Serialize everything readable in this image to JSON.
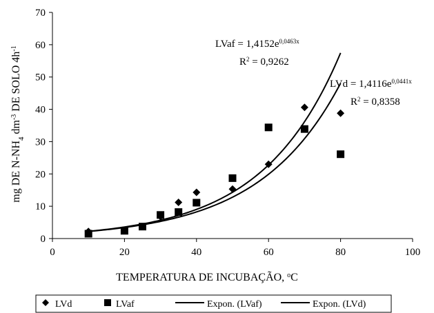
{
  "chart_data": {
    "type": "scatter",
    "xlabel": "TEMPERATURA DE INCUBAÇÃO, °C",
    "ylabel": "mg DE N-NH4 dm-3 DE SOLO 4h-1",
    "ylabel_parts": {
      "pre": "mg DE N-NH",
      "sub": "4",
      "mid": " dm",
      "sup1": "-3",
      "post": " DE SOLO 4h",
      "sup2": "-1"
    },
    "xlabel_parts": {
      "pre": "TEMPERATURA DE INCUBAÇÃO, ",
      "sup": "o",
      "post": "C"
    },
    "xlim": [
      0,
      100
    ],
    "ylim": [
      0,
      70
    ],
    "xticks": [
      0,
      20,
      40,
      60,
      80,
      100
    ],
    "yticks": [
      0,
      10,
      20,
      30,
      40,
      50,
      60,
      70
    ],
    "grid": false,
    "legend_position": "bottom",
    "series": [
      {
        "name": "LVd",
        "marker": "diamond",
        "points": [
          {
            "x": 10,
            "y": 2.2
          },
          {
            "x": 30,
            "y": 6.8
          },
          {
            "x": 35,
            "y": 11.2
          },
          {
            "x": 40,
            "y": 14.3
          },
          {
            "x": 50,
            "y": 15.3
          },
          {
            "x": 60,
            "y": 23.0
          },
          {
            "x": 70,
            "y": 40.6
          },
          {
            "x": 80,
            "y": 38.8
          }
        ]
      },
      {
        "name": "LVaf",
        "marker": "square",
        "points": [
          {
            "x": 10,
            "y": 1.5
          },
          {
            "x": 20,
            "y": 2.4
          },
          {
            "x": 25,
            "y": 3.7
          },
          {
            "x": 30,
            "y": 7.3
          },
          {
            "x": 35,
            "y": 8.2
          },
          {
            "x": 40,
            "y": 11.1
          },
          {
            "x": 50,
            "y": 18.7
          },
          {
            "x": 60,
            "y": 34.4
          },
          {
            "x": 70,
            "y": 33.9
          },
          {
            "x": 80,
            "y": 26.1
          }
        ]
      }
    ],
    "trendlines": [
      {
        "name": "Expon. (LVaf)",
        "a": 1.4152,
        "b": 0.0463,
        "x_range": [
          10,
          80
        ],
        "equation_base": "LVaf = 1,4152e",
        "equation_exp": "0,0463x",
        "r2_label": "R",
        "r2_sup": "2",
        "r2_value": " = 0,9262"
      },
      {
        "name": "Expon. (LVd)",
        "a": 1.4116,
        "b": 0.0441,
        "x_range": [
          10,
          80
        ],
        "equation_base": "LVd = 1,4116e",
        "equation_exp": "0,0441x",
        "r2_label": "R",
        "r2_sup": "2",
        "r2_value": " = 0,8358"
      }
    ],
    "legend": [
      "LVd",
      "LVaf",
      "Expon. (LVaf)",
      "Expon. (LVd)"
    ]
  }
}
